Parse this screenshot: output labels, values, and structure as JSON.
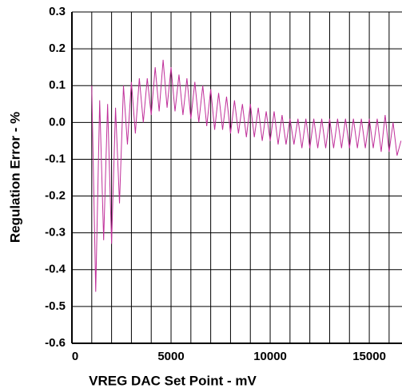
{
  "chart_data": {
    "type": "line",
    "xlabel": "VREG DAC Set Point - mV",
    "ylabel": "Regulation Error - %",
    "xlim": [
      0,
      16650
    ],
    "ylim": [
      -0.6,
      0.3
    ],
    "xticks": [
      0,
      5000,
      10000,
      15000
    ],
    "xminor_ticks": [
      1000,
      2000,
      3000,
      4000,
      6000,
      7000,
      8000,
      9000,
      11000,
      12000,
      13000,
      14000,
      16000
    ],
    "yticks": [
      0.3,
      0.2,
      0.1,
      {
        "value": 0,
        "label": "0.0"
      },
      -0.1,
      -0.2,
      -0.3,
      -0.4,
      -0.5,
      -0.6
    ],
    "grid": true,
    "x": [
      1000,
      1200,
      1400,
      1600,
      1800,
      2000,
      2200,
      2400,
      2600,
      2800,
      3000,
      3200,
      3400,
      3600,
      3800,
      4000,
      4200,
      4400,
      4600,
      4800,
      5000,
      5200,
      5400,
      5600,
      5800,
      6000,
      6200,
      6400,
      6600,
      6800,
      7000,
      7200,
      7400,
      7600,
      7800,
      8000,
      8200,
      8400,
      8600,
      8800,
      9000,
      9200,
      9400,
      9600,
      9800,
      10000,
      10200,
      10400,
      10600,
      10800,
      11000,
      11200,
      11400,
      11600,
      11800,
      12000,
      12200,
      12400,
      12600,
      12800,
      13000,
      13200,
      13400,
      13600,
      13800,
      14000,
      14200,
      14400,
      14600,
      14800,
      15000,
      15200,
      15400,
      15600,
      15800,
      16000,
      16200,
      16400,
      16600
    ],
    "series": [
      {
        "color": "#c0309a",
        "values": [
          0.1,
          -0.46,
          0.06,
          -0.32,
          0.05,
          -0.33,
          0.04,
          -0.22,
          0.1,
          -0.06,
          0.11,
          -0.03,
          0.12,
          0.0,
          0.12,
          0.02,
          0.15,
          0.03,
          0.17,
          0.04,
          0.15,
          0.03,
          0.13,
          0.02,
          0.12,
          0.01,
          0.11,
          0.0,
          0.1,
          -0.01,
          0.09,
          -0.02,
          0.08,
          -0.02,
          0.07,
          -0.03,
          0.06,
          -0.03,
          0.05,
          -0.04,
          0.05,
          -0.04,
          0.04,
          -0.05,
          0.03,
          -0.05,
          0.03,
          -0.06,
          0.02,
          -0.06,
          0.01,
          -0.06,
          0.01,
          -0.07,
          0.01,
          -0.07,
          0.01,
          -0.07,
          0.01,
          -0.07,
          0.01,
          -0.07,
          0.01,
          -0.07,
          0.01,
          -0.07,
          0.01,
          -0.07,
          0.01,
          -0.07,
          0.01,
          -0.07,
          0.01,
          -0.08,
          0.02,
          -0.08,
          0.0,
          -0.09,
          -0.05
        ]
      }
    ]
  }
}
